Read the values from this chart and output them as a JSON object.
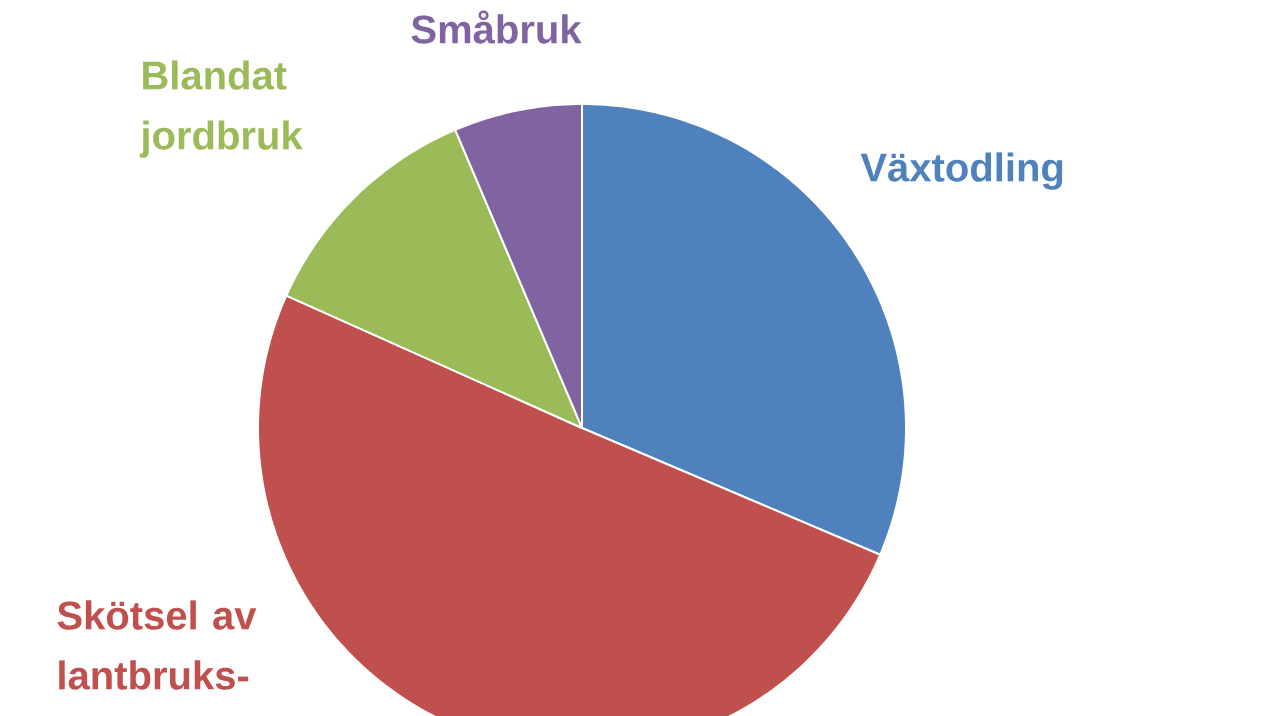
{
  "chart_data": {
    "type": "pie",
    "categories": [
      "Växtodling",
      "Skötsel av lantbruks-",
      "Blandat jordbruk",
      "Småbruk"
    ],
    "values": [
      31.4,
      50.3,
      11.9,
      6.4
    ],
    "colors": [
      "#4f81bd",
      "#c0504d",
      "#9bbb59",
      "#8064a2"
    ]
  }
}
